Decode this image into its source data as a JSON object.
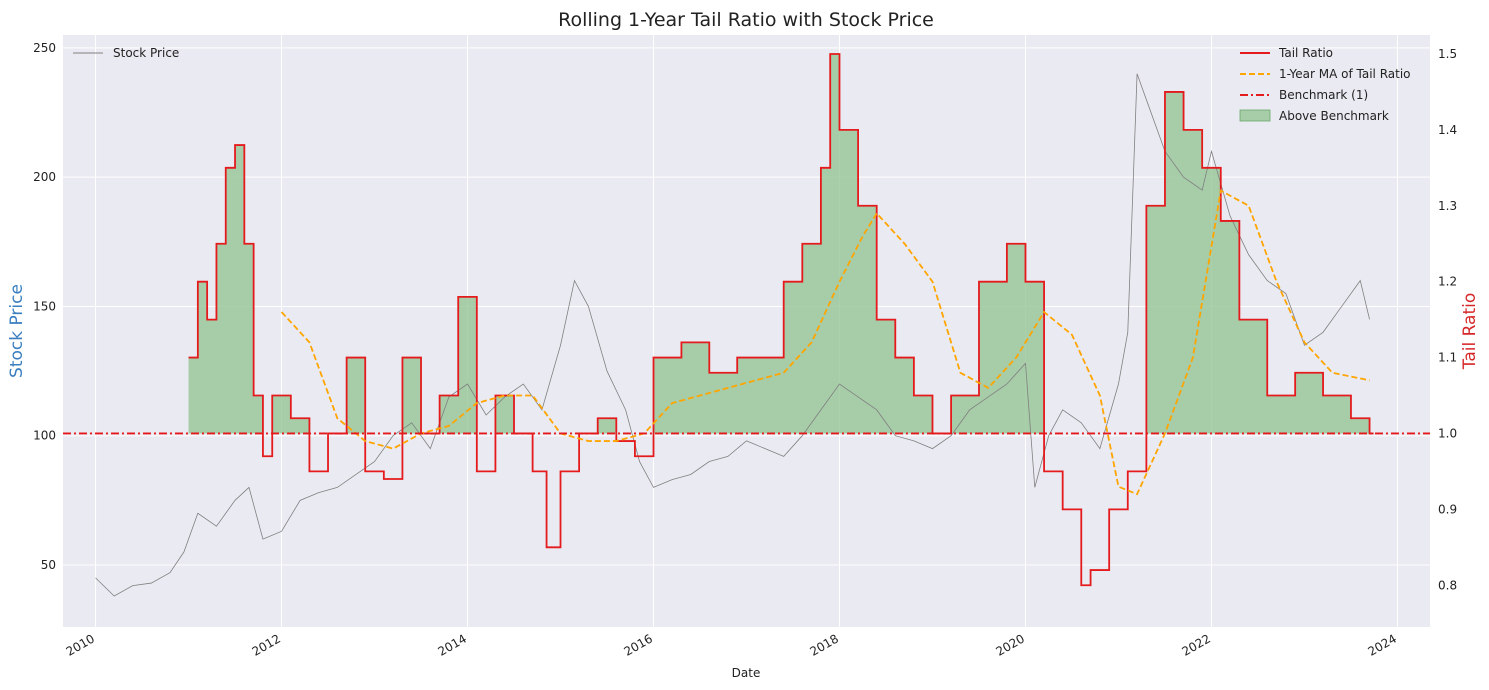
{
  "chart_data": {
    "type": "line",
    "title": "Rolling 1-Year Tail Ratio with Stock Price",
    "xlabel": "Date",
    "ylabel_left": "Stock Price",
    "ylabel_right": "Tail Ratio",
    "xlim": [
      2009.65,
      2024.35
    ],
    "ylim_left": [
      26,
      255
    ],
    "ylim_right": [
      0.745,
      1.525
    ],
    "x_ticks": [
      2010,
      2012,
      2014,
      2016,
      2018,
      2020,
      2022,
      2024
    ],
    "y_ticks_left": [
      50,
      100,
      150,
      200,
      250
    ],
    "y_ticks_right": [
      0.8,
      0.9,
      1.0,
      1.1,
      1.2,
      1.3,
      1.4,
      1.5
    ],
    "grid": true,
    "legend_left": {
      "placement": "top-left",
      "entries": [
        "Stock Price"
      ]
    },
    "legend_right": {
      "placement": "top-right",
      "entries": [
        "Tail Ratio",
        "1-Year MA of Tail Ratio",
        "Benchmark (1)",
        "Above Benchmark"
      ]
    },
    "colors": {
      "stock": "#808080",
      "tail": "#e41a1c",
      "ma": "#ffa500",
      "benchmark": "#e41a1c",
      "fill": "#8fc28f",
      "axes_bg": "#eaeaf2",
      "left_label": "#3a7ebf",
      "right_label": "#d62728"
    },
    "series": [
      {
        "name": "Stock Price",
        "axis": "left",
        "x": [
          2010.0,
          2010.2,
          2010.4,
          2010.6,
          2010.8,
          2010.95,
          2011.1,
          2011.3,
          2011.5,
          2011.65,
          2011.8,
          2012.0,
          2012.2,
          2012.4,
          2012.6,
          2012.8,
          2013.0,
          2013.2,
          2013.4,
          2013.6,
          2013.8,
          2014.0,
          2014.2,
          2014.4,
          2014.6,
          2014.8,
          2015.0,
          2015.15,
          2015.3,
          2015.5,
          2015.7,
          2015.85,
          2016.0,
          2016.2,
          2016.4,
          2016.6,
          2016.8,
          2017.0,
          2017.2,
          2017.4,
          2017.6,
          2017.8,
          2018.0,
          2018.2,
          2018.4,
          2018.6,
          2018.8,
          2019.0,
          2019.2,
          2019.4,
          2019.6,
          2019.8,
          2020.0,
          2020.1,
          2020.25,
          2020.4,
          2020.6,
          2020.8,
          2021.0,
          2021.1,
          2021.2,
          2021.35,
          2021.5,
          2021.7,
          2021.9,
          2022.0,
          2022.2,
          2022.4,
          2022.6,
          2022.8,
          2023.0,
          2023.2,
          2023.4,
          2023.6,
          2023.7
        ],
        "values": [
          45,
          38,
          42,
          43,
          47,
          55,
          70,
          65,
          75,
          80,
          60,
          63,
          75,
          78,
          80,
          85,
          90,
          100,
          105,
          95,
          115,
          120,
          108,
          115,
          120,
          110,
          135,
          160,
          150,
          125,
          110,
          90,
          80,
          83,
          85,
          90,
          92,
          98,
          95,
          92,
          100,
          110,
          120,
          115,
          110,
          100,
          98,
          95,
          100,
          110,
          115,
          120,
          128,
          80,
          100,
          110,
          105,
          95,
          120,
          140,
          240,
          225,
          210,
          200,
          195,
          210,
          185,
          170,
          160,
          155,
          135,
          140,
          150,
          160,
          145
        ]
      },
      {
        "name": "Tail Ratio",
        "axis": "right",
        "x": [
          2011.0,
          2011.1,
          2011.2,
          2011.3,
          2011.4,
          2011.5,
          2011.6,
          2011.7,
          2011.8,
          2011.9,
          2012.1,
          2012.3,
          2012.5,
          2012.7,
          2012.9,
          2013.1,
          2013.3,
          2013.5,
          2013.7,
          2013.9,
          2014.1,
          2014.3,
          2014.5,
          2014.7,
          2014.85,
          2015.0,
          2015.2,
          2015.4,
          2015.6,
          2015.8,
          2016.0,
          2016.3,
          2016.6,
          2016.9,
          2017.2,
          2017.4,
          2017.6,
          2017.8,
          2017.9,
          2018.0,
          2018.2,
          2018.4,
          2018.6,
          2018.8,
          2019.0,
          2019.2,
          2019.5,
          2019.8,
          2020.0,
          2020.2,
          2020.4,
          2020.6,
          2020.7,
          2020.9,
          2021.1,
          2021.3,
          2021.5,
          2021.7,
          2021.9,
          2022.1,
          2022.3,
          2022.6,
          2022.9,
          2023.2,
          2023.5,
          2023.7
        ],
        "values": [
          1.1,
          1.2,
          1.15,
          1.25,
          1.35,
          1.38,
          1.25,
          1.05,
          0.97,
          1.05,
          1.02,
          0.95,
          1.0,
          1.1,
          0.95,
          0.94,
          1.1,
          1.0,
          1.05,
          1.18,
          0.95,
          1.05,
          1.0,
          0.95,
          0.85,
          0.95,
          1.0,
          1.02,
          0.99,
          0.97,
          1.1,
          1.12,
          1.08,
          1.1,
          1.1,
          1.2,
          1.25,
          1.35,
          1.5,
          1.4,
          1.3,
          1.15,
          1.1,
          1.05,
          1.0,
          1.05,
          1.2,
          1.25,
          1.2,
          0.95,
          0.9,
          0.8,
          0.82,
          0.9,
          0.95,
          1.3,
          1.45,
          1.4,
          1.35,
          1.28,
          1.15,
          1.05,
          1.08,
          1.05,
          1.02,
          1.0
        ]
      },
      {
        "name": "1-Year MA of Tail Ratio",
        "axis": "right",
        "x": [
          2012.0,
          2012.3,
          2012.6,
          2012.9,
          2013.2,
          2013.5,
          2013.8,
          2014.1,
          2014.4,
          2014.7,
          2015.0,
          2015.3,
          2015.6,
          2015.9,
          2016.2,
          2016.5,
          2016.8,
          2017.1,
          2017.4,
          2017.7,
          2018.0,
          2018.25,
          2018.4,
          2018.7,
          2019.0,
          2019.3,
          2019.6,
          2019.9,
          2020.2,
          2020.5,
          2020.8,
          2021.0,
          2021.2,
          2021.5,
          2021.8,
          2022.1,
          2022.4,
          2022.7,
          2023.0,
          2023.3,
          2023.7
        ],
        "values": [
          1.16,
          1.12,
          1.02,
          0.99,
          0.98,
          1.0,
          1.01,
          1.04,
          1.05,
          1.05,
          1.0,
          0.99,
          0.99,
          1.0,
          1.04,
          1.05,
          1.06,
          1.07,
          1.08,
          1.12,
          1.2,
          1.26,
          1.29,
          1.25,
          1.2,
          1.08,
          1.06,
          1.1,
          1.16,
          1.13,
          1.05,
          0.93,
          0.92,
          1.0,
          1.1,
          1.32,
          1.3,
          1.2,
          1.12,
          1.08,
          1.07
        ]
      },
      {
        "name": "Benchmark (1)",
        "axis": "right",
        "x": [
          2009.65,
          2024.35
        ],
        "values": [
          1.0,
          1.0
        ]
      }
    ]
  }
}
